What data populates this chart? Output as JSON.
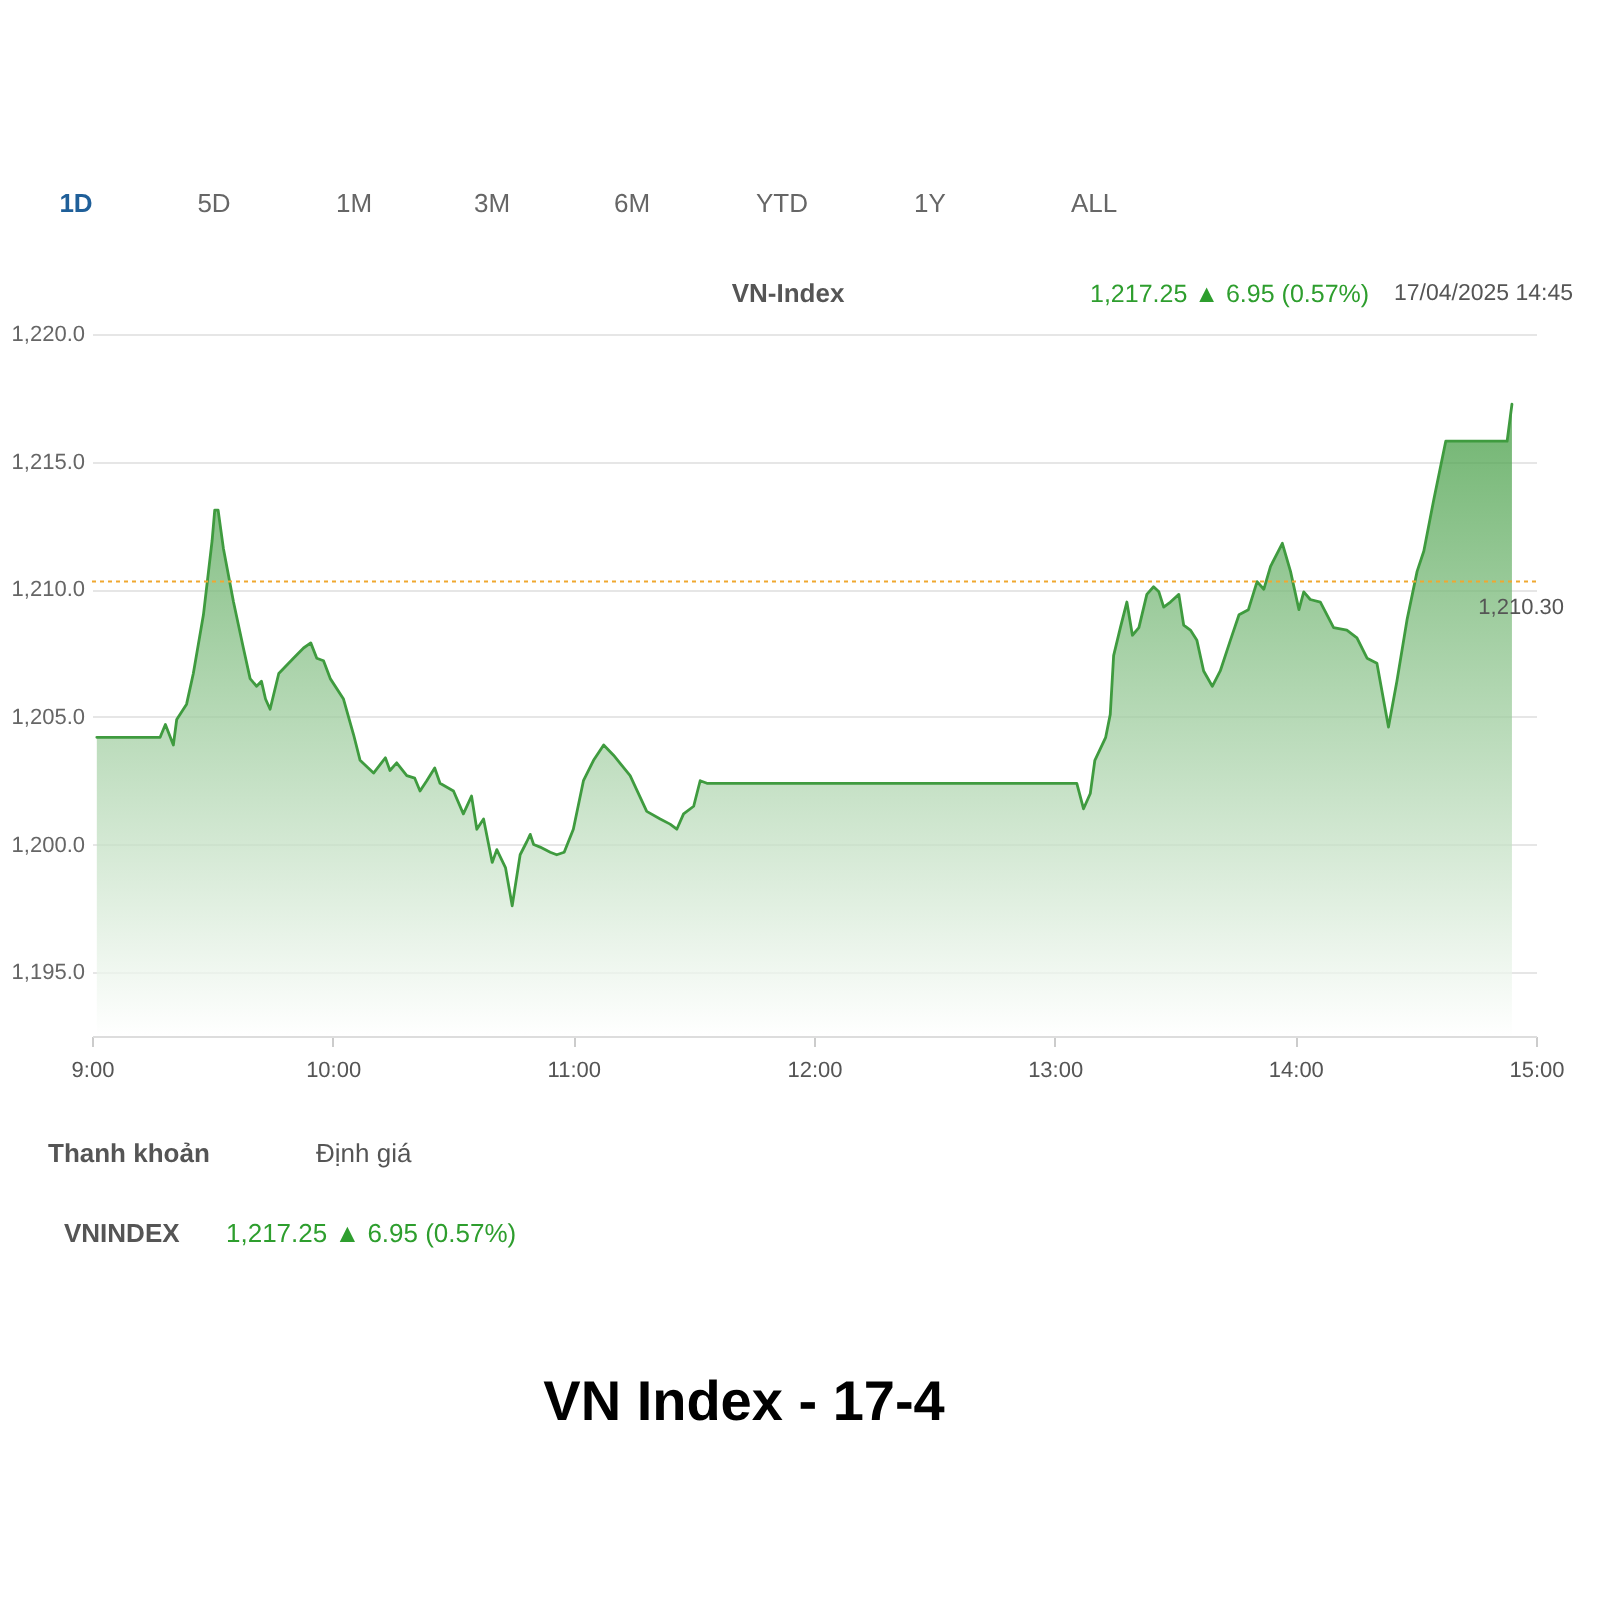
{
  "chart_data": {
    "type": "area",
    "title": "VN-Index",
    "x": [
      9.02,
      9.283,
      9.305,
      9.338,
      9.352,
      9.393,
      9.421,
      9.463,
      9.499,
      9.51,
      9.524,
      9.546,
      9.588,
      9.629,
      9.657,
      9.684,
      9.704,
      9.721,
      9.74,
      9.776,
      9.837,
      9.879,
      9.909,
      9.934,
      9.962,
      9.99,
      10.045,
      10.087,
      10.114,
      10.17,
      10.219,
      10.238,
      10.266,
      10.308,
      10.341,
      10.363,
      10.391,
      10.424,
      10.446,
      10.502,
      10.543,
      10.577,
      10.599,
      10.627,
      10.663,
      10.682,
      10.718,
      10.746,
      10.779,
      10.806,
      10.821,
      10.835,
      10.862,
      10.904,
      10.931,
      10.962,
      11.0,
      11.042,
      11.084,
      11.126,
      11.167,
      11.236,
      11.305,
      11.361,
      11.402,
      11.43,
      11.458,
      11.5,
      11.527,
      11.555,
      13.092,
      13.12,
      13.148,
      13.167,
      13.212,
      13.231,
      13.245,
      13.273,
      13.3,
      13.323,
      13.35,
      13.383,
      13.411,
      13.433,
      13.453,
      13.481,
      13.516,
      13.536,
      13.564,
      13.591,
      13.619,
      13.655,
      13.688,
      13.73,
      13.766,
      13.805,
      13.841,
      13.869,
      13.897,
      13.946,
      13.98,
      14.015,
      14.035,
      14.062,
      14.104,
      14.159,
      14.214,
      14.256,
      14.298,
      14.339,
      14.387,
      14.422,
      14.464,
      14.506,
      14.534,
      14.575,
      14.625,
      14.88,
      14.9
    ],
    "series": [
      {
        "color": "#3f9b3f",
        "values": [
          1204.2,
          1204.2,
          1204.7,
          1203.9,
          1204.9,
          1205.5,
          1206.7,
          1209.0,
          1211.9,
          1213.1,
          1213.1,
          1211.6,
          1209.5,
          1207.7,
          1206.5,
          1206.2,
          1206.4,
          1205.7,
          1205.3,
          1206.7,
          1207.3,
          1207.7,
          1207.9,
          1207.3,
          1207.2,
          1206.5,
          1205.7,
          1204.3,
          1203.3,
          1202.8,
          1203.4,
          1202.9,
          1203.2,
          1202.7,
          1202.6,
          1202.1,
          1202.5,
          1203.0,
          1202.4,
          1202.1,
          1201.2,
          1201.9,
          1200.6,
          1201.0,
          1199.3,
          1199.8,
          1199.1,
          1197.6,
          1199.6,
          1200.1,
          1200.4,
          1200.0,
          1199.9,
          1199.7,
          1199.6,
          1199.7,
          1200.6,
          1202.5,
          1203.3,
          1203.9,
          1203.5,
          1202.7,
          1201.3,
          1201.0,
          1200.8,
          1200.6,
          1201.2,
          1201.5,
          1202.5,
          1202.4,
          1202.4,
          1201.4,
          1202.0,
          1203.3,
          1204.2,
          1205.1,
          1207.4,
          1208.5,
          1209.5,
          1208.2,
          1208.5,
          1209.8,
          1210.1,
          1209.9,
          1209.3,
          1209.5,
          1209.8,
          1208.6,
          1208.4,
          1208.0,
          1206.8,
          1206.2,
          1206.8,
          1208.0,
          1209.0,
          1209.2,
          1210.3,
          1210.0,
          1210.9,
          1211.8,
          1210.7,
          1209.2,
          1209.9,
          1209.6,
          1209.5,
          1208.5,
          1208.4,
          1208.1,
          1207.3,
          1207.1,
          1204.6,
          1206.4,
          1208.8,
          1210.7,
          1211.5,
          1213.5,
          1215.8,
          1215.8,
          1217.25
        ]
      }
    ],
    "xlim": [
      9,
      15
    ],
    "xticks": [
      {
        "value": 9,
        "label": "9:00"
      },
      {
        "value": 10,
        "label": "10:00"
      },
      {
        "value": 11,
        "label": "11:00"
      },
      {
        "value": 12,
        "label": "12:00"
      },
      {
        "value": 13,
        "label": "13:00"
      },
      {
        "value": 14,
        "label": "14:00"
      },
      {
        "value": 15,
        "label": "15:00"
      }
    ],
    "ylim": [
      1192.5,
      1220
    ],
    "yticks": [
      {
        "value": 1195,
        "label": "1,195.0"
      },
      {
        "value": 1200,
        "label": "1,200.0"
      },
      {
        "value": 1205,
        "label": "1,205.0"
      },
      {
        "value": 1210,
        "label": "1,210.0"
      },
      {
        "value": 1215,
        "label": "1,215.0"
      },
      {
        "value": 1220,
        "label": "1,220.0"
      }
    ],
    "grid": "y",
    "ref_lines": [
      {
        "axis": "y",
        "value": 1210.3,
        "label": "1,210.30",
        "color": "#f0a830",
        "line_style": "dotted"
      }
    ],
    "annotations": [
      "1D",
      "5D",
      "1M",
      "3M",
      "6M",
      "YTD",
      "1Y",
      "ALL",
      "1,217.25 ▲ 6.95 (0.57%)",
      "17/04/2025 14:45",
      "Thanh khoản",
      "Định giá",
      "VNINDEX",
      "1,217.25 ▲ 6.95 (0.57%)",
      "VN Index - 17-4"
    ]
  }
}
